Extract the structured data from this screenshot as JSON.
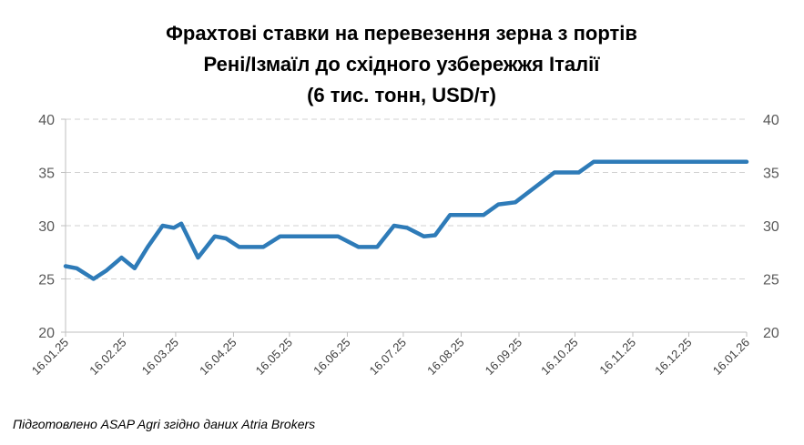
{
  "chart_data": {
    "type": "line",
    "title": [
      "Фрахтові ставки на перевезення зерна з портів",
      "Рені/Ізмаїл до східного узбережжя Італії",
      "(6 тис. тонн, USD/т)"
    ],
    "note": "Підготовлено ASAP Agri згідно даних Atria Brokers",
    "x": [
      "16.01.25",
      "22.01.25",
      "31.01.25",
      "07.02.25",
      "15.02.25",
      "22.02.25",
      "01.03.25",
      "09.03.25",
      "15.03.25",
      "19.03.25",
      "28.03.25",
      "06.04.25",
      "12.04.25",
      "19.04.25",
      "02.05.25",
      "11.05.25",
      "11.06.25",
      "22.06.25",
      "02.07.25",
      "11.07.25",
      "18.07.25",
      "27.07.25",
      "02.08.25",
      "10.08.25",
      "28.08.25",
      "05.09.25",
      "14.09.25",
      "05.10.25",
      "18.10.25",
      "26.10.25",
      "16.01.26"
    ],
    "series": [
      {
        "color": "#2e7bb8",
        "values": [
          26.2,
          26,
          25,
          25.8,
          27,
          26,
          28,
          30,
          29.8,
          30.2,
          27,
          29,
          28.8,
          28,
          28,
          29,
          29,
          28,
          28,
          30,
          29.8,
          29,
          29.1,
          31,
          31,
          32,
          32.2,
          35,
          35,
          36,
          36
        ]
      }
    ],
    "xlim": [
      "16.01.25",
      "16.01.26"
    ],
    "xticks": [
      "16.01.25",
      "16.02.25",
      "16.03.25",
      "16.04.25",
      "16.05.25",
      "16.06.25",
      "16.07.25",
      "16.08.25",
      "16.09.25",
      "16.10.25",
      "16.11.25",
      "16.12.25",
      "16.01.26"
    ],
    "ylim": [
      20,
      40
    ],
    "yticks": [
      20,
      25,
      30,
      35,
      40
    ],
    "y2lim": [
      20,
      40
    ],
    "y2ticks": [
      20,
      25,
      30,
      35,
      40
    ],
    "grid": true
  }
}
